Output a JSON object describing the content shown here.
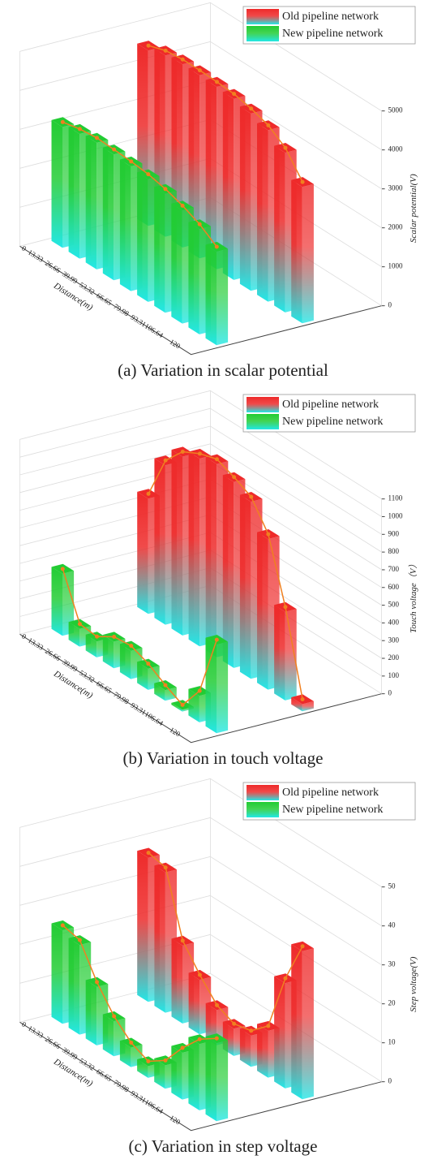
{
  "chart_data": [
    {
      "type": "bar3d",
      "caption": "(a) Variation in scalar potential",
      "xlabel": "Distance(m)",
      "ylabel": "Scalar potential(V)",
      "categories": [
        "0",
        "13.33",
        "26.66",
        "39.99",
        "53.32",
        "66.65",
        "79.98",
        "93.31",
        "106.64",
        "120"
      ],
      "ylim": [
        0,
        5000
      ],
      "yticks": [
        0,
        1000,
        2000,
        3000,
        4000,
        5000
      ],
      "grid": true,
      "legend": "top-right",
      "series": [
        {
          "name": "Old pipeline network",
          "color": "#ee2a2a",
          "values": [
            4500,
            4650,
            4700,
            4700,
            4680,
            4650,
            4550,
            4400,
            4100,
            3500
          ]
        },
        {
          "name": "New pipeline network",
          "color": "#22cc33",
          "values": [
            3100,
            3200,
            3250,
            3230,
            3200,
            3150,
            3050,
            2900,
            2700,
            2400
          ]
        }
      ]
    },
    {
      "type": "bar3d",
      "caption": "(b) Variation in touch voltage",
      "xlabel": "Distance(m)",
      "ylabel": "Touch voltage（V）",
      "categories": [
        "0",
        "13.33",
        "26.66",
        "39.99",
        "53.32",
        "66.65",
        "79.98",
        "93.31",
        "106.64",
        "120"
      ],
      "ylim": [
        0,
        1100
      ],
      "yticks": [
        0,
        100,
        200,
        300,
        400,
        500,
        600,
        700,
        800,
        900,
        1000,
        1100
      ],
      "grid": true,
      "legend": "top-right",
      "series": [
        {
          "name": "Old pipeline network",
          "color": "#ee2a2a",
          "values": [
            650,
            900,
            1010,
            1060,
            1090,
            1050,
            1000,
            850,
            500,
            40
          ]
        },
        {
          "name": "New pipeline network",
          "color": "#22cc33",
          "values": [
            350,
            100,
            90,
            150,
            160,
            120,
            60,
            10,
            150,
            500
          ]
        }
      ]
    },
    {
      "type": "bar3d",
      "caption": "(c) Variation in step voltage",
      "xlabel": "Distance(m)",
      "ylabel": "Step voltage(V)",
      "categories": [
        "0",
        "13.33",
        "26.66",
        "39.99",
        "53.32",
        "66.65",
        "79.98",
        "93.31",
        "106.64",
        "120"
      ],
      "ylim": [
        0,
        50
      ],
      "yticks": [
        0,
        10,
        20,
        30,
        40,
        50
      ],
      "grid": true,
      "legend": "top-right",
      "series": [
        {
          "name": "Old pipeline network",
          "color": "#ee2a2a",
          "values": [
            37,
            36,
            20,
            14,
            9,
            7,
            8,
            12,
            27,
            38
          ]
        },
        {
          "name": "New pipeline network",
          "color": "#22cc33",
          "values": [
            24,
            23,
            15,
            9,
            5,
            3,
            6,
            12,
            17,
            20
          ]
        }
      ]
    }
  ]
}
